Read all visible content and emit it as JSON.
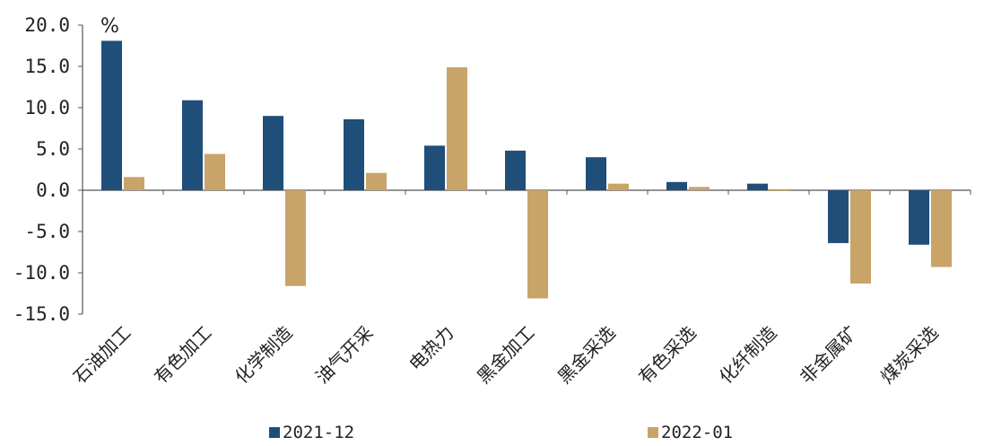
{
  "chart_data": {
    "type": "bar",
    "unit": "%",
    "categories": [
      "石油加工",
      "有色加工",
      "化学制造",
      "油气开采",
      "电热力",
      "黑金加工",
      "黑金采选",
      "有色采选",
      "化纤制造",
      "非金属矿",
      "煤炭采选"
    ],
    "series": [
      {
        "name": "2021-12",
        "color": "#1f4e79",
        "values": [
          18.1,
          10.9,
          9.0,
          8.6,
          5.4,
          4.8,
          4.0,
          1.0,
          0.8,
          -6.4,
          -6.6
        ]
      },
      {
        "name": "2022-01",
        "color": "#c8a468",
        "values": [
          1.6,
          4.4,
          -11.6,
          2.1,
          14.9,
          -13.1,
          0.8,
          0.4,
          -0.1,
          -11.3,
          -9.3
        ]
      }
    ],
    "y_ticks": [
      "20.0",
      "15.0",
      "10.0",
      "5.0",
      "0.0",
      "-5.0",
      "-10.0",
      "-15.0"
    ],
    "ylim": [
      -15,
      20
    ],
    "grid": false,
    "legend_position": "bottom"
  }
}
